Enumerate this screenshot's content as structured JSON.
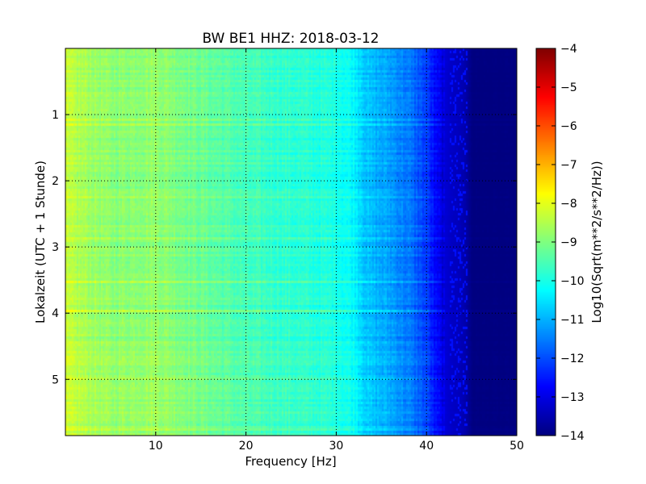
{
  "chart_data": {
    "type": "heatmap",
    "title": "BW BE1 HHZ: 2018-03-12",
    "xlabel": "Frequency [Hz]",
    "ylabel": "Lokalzeit (UTC + 1 Stunde)",
    "xlim": [
      0,
      50
    ],
    "ylim": [
      0,
      5.85
    ],
    "y_inverted": true,
    "x_ticks": [
      10,
      20,
      30,
      40,
      50
    ],
    "y_ticks": [
      1,
      2,
      3,
      4,
      5
    ],
    "grid": true,
    "colormap": "jet",
    "colorbar": {
      "label": "Log10(Sqrt(m**2/s**2/Hz))",
      "range": [
        -14,
        -4
      ],
      "ticks": [
        -14,
        -13,
        -12,
        -11,
        -10,
        -9,
        -8,
        -7,
        -6,
        -5,
        -4
      ]
    },
    "profile_frequency_hz": [
      0,
      2,
      5,
      10,
      15,
      20,
      25,
      30,
      32,
      33.5,
      36,
      38,
      40,
      41,
      42,
      44,
      45,
      50
    ],
    "profile_log10_psd": [
      -8.4,
      -8.6,
      -8.9,
      -8.8,
      -9.2,
      -9.6,
      -9.8,
      -10.0,
      -10.3,
      -10.9,
      -11.2,
      -11.6,
      -12.2,
      -12.8,
      -13.2,
      -13.5,
      -14.0,
      -14.0
    ]
  }
}
